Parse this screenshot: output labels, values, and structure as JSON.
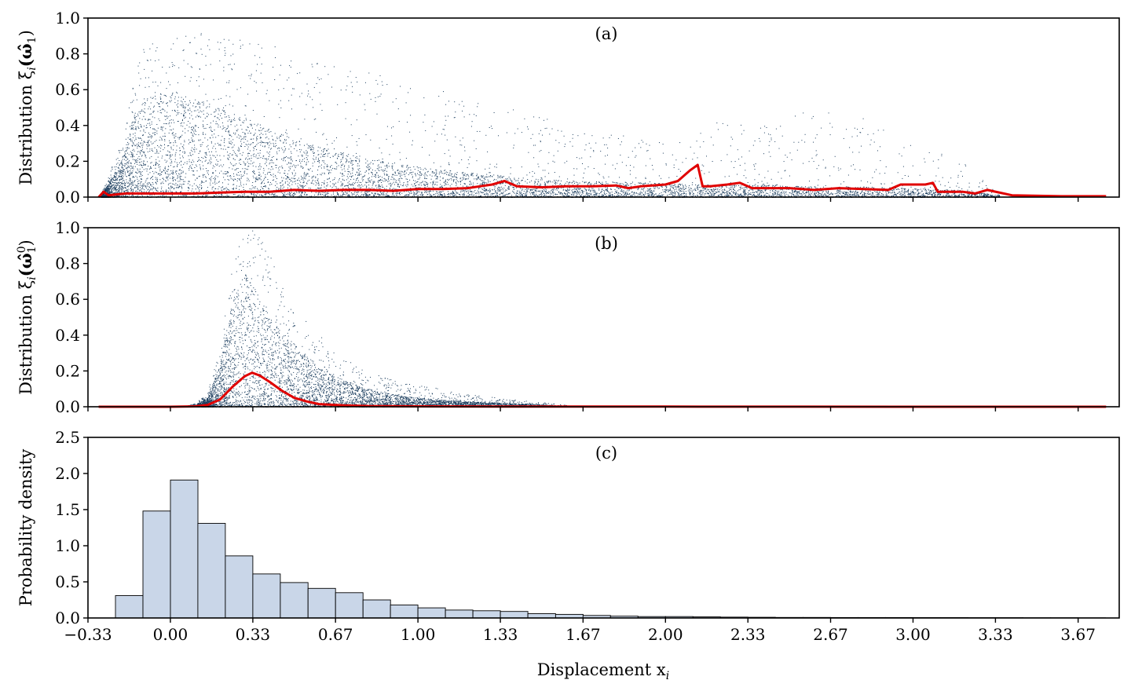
{
  "colors": {
    "scatter": "#1b3d5e",
    "mean_line": "#e00000",
    "bar_fill": "#c9d6e8",
    "bar_edge": "#000000"
  },
  "xlabel": "Displacement x",
  "xlabel_sub": "i",
  "x_ticks": [
    -0.333,
    0.0,
    0.333,
    0.667,
    1.0,
    1.333,
    1.667,
    2.0,
    2.333,
    2.667,
    3.0,
    3.333,
    3.667
  ],
  "x_tick_labels": [
    "−0.33",
    "0.00",
    "0.33",
    "0.67",
    "1.00",
    "1.33",
    "1.67",
    "2.00",
    "2.33",
    "2.67",
    "3.00",
    "3.33",
    "3.67"
  ],
  "chart_data": [
    {
      "type": "scatter",
      "panel_tag": "(a)",
      "ylabel_main": "Distribution ξ",
      "ylabel_sub": "i",
      "ylabel_arg": "(ω̂",
      "ylabel_arg_sub": "1",
      "ylabel_arg_sup": "",
      "ylabel_close": ")",
      "xlim": [
        -0.333,
        3.833
      ],
      "ylim": [
        0,
        1.0
      ],
      "y_ticks": [
        0.0,
        0.2,
        0.4,
        0.6,
        0.8,
        1.0
      ],
      "y_tick_labels": [
        "0.0",
        "0.2",
        "0.4",
        "0.6",
        "0.8",
        "1.0"
      ],
      "scatter_envelope": {
        "x": [
          -0.28,
          -0.2,
          -0.15,
          -0.1,
          0.0,
          0.1,
          0.2,
          0.3,
          0.45,
          0.6,
          0.8,
          1.0,
          1.2,
          1.35,
          1.5,
          1.7,
          2.0,
          2.2,
          2.4,
          2.6,
          2.8,
          3.0,
          3.2,
          3.35
        ],
        "upper": [
          0.02,
          0.3,
          0.65,
          0.9,
          0.93,
          0.92,
          0.9,
          0.88,
          0.85,
          0.8,
          0.72,
          0.65,
          0.55,
          0.52,
          0.45,
          0.38,
          0.3,
          0.42,
          0.4,
          0.5,
          0.45,
          0.3,
          0.2,
          0.01
        ],
        "dense_upper": [
          0.01,
          0.2,
          0.45,
          0.55,
          0.6,
          0.55,
          0.5,
          0.45,
          0.35,
          0.28,
          0.22,
          0.17,
          0.14,
          0.12,
          0.1,
          0.09,
          0.08,
          0.07,
          0.07,
          0.06,
          0.06,
          0.05,
          0.04,
          0.01
        ]
      },
      "mean_line": {
        "x": [
          -0.29,
          -0.27,
          -0.25,
          -0.22,
          -0.18,
          -0.1,
          0.0,
          0.1,
          0.2,
          0.3,
          0.4,
          0.5,
          0.6,
          0.7,
          0.8,
          0.9,
          1.0,
          1.1,
          1.2,
          1.25,
          1.3,
          1.35,
          1.4,
          1.5,
          1.6,
          1.7,
          1.8,
          1.85,
          1.9,
          2.0,
          2.05,
          2.1,
          2.13,
          2.15,
          2.18,
          2.25,
          2.3,
          2.35,
          2.4,
          2.5,
          2.6,
          2.7,
          2.8,
          2.9,
          2.95,
          3.0,
          3.05,
          3.08,
          3.1,
          3.2,
          3.25,
          3.3,
          3.4,
          3.6,
          3.78
        ],
        "y": [
          0.0,
          0.03,
          0.01,
          0.015,
          0.02,
          0.02,
          0.02,
          0.02,
          0.025,
          0.03,
          0.03,
          0.04,
          0.035,
          0.04,
          0.04,
          0.035,
          0.045,
          0.045,
          0.05,
          0.06,
          0.07,
          0.09,
          0.06,
          0.055,
          0.06,
          0.06,
          0.065,
          0.05,
          0.06,
          0.07,
          0.09,
          0.15,
          0.18,
          0.06,
          0.06,
          0.07,
          0.08,
          0.05,
          0.05,
          0.05,
          0.04,
          0.05,
          0.045,
          0.04,
          0.07,
          0.07,
          0.07,
          0.08,
          0.03,
          0.03,
          0.02,
          0.04,
          0.01,
          0.005,
          0.005
        ]
      }
    },
    {
      "type": "scatter",
      "panel_tag": "(b)",
      "ylabel_main": "Distribution ξ",
      "ylabel_sub": "i",
      "ylabel_arg": "(ω̂",
      "ylabel_arg_sub": "1",
      "ylabel_arg_sup": "0",
      "ylabel_close": ")",
      "xlim": [
        -0.333,
        3.833
      ],
      "ylim": [
        0,
        1.0
      ],
      "y_ticks": [
        0.0,
        0.2,
        0.4,
        0.6,
        0.8,
        1.0
      ],
      "y_tick_labels": [
        "0.0",
        "0.2",
        "0.4",
        "0.6",
        "0.8",
        "1.0"
      ],
      "scatter_envelope": {
        "x": [
          0.05,
          0.1,
          0.15,
          0.2,
          0.25,
          0.3,
          0.35,
          0.4,
          0.5,
          0.6,
          0.7,
          0.8,
          0.9,
          1.0,
          1.1,
          1.2,
          1.4,
          1.6
        ],
        "upper": [
          0.0,
          0.02,
          0.08,
          0.35,
          0.8,
          1.0,
          1.0,
          0.85,
          0.55,
          0.4,
          0.28,
          0.2,
          0.15,
          0.12,
          0.1,
          0.07,
          0.04,
          0.01
        ],
        "dense_upper": [
          0.0,
          0.01,
          0.05,
          0.25,
          0.6,
          0.75,
          0.65,
          0.5,
          0.35,
          0.22,
          0.15,
          0.1,
          0.07,
          0.05,
          0.04,
          0.03,
          0.02,
          0.005
        ]
      },
      "mean_line": {
        "x": [
          -0.29,
          0.0,
          0.1,
          0.15,
          0.2,
          0.25,
          0.3,
          0.33,
          0.36,
          0.4,
          0.45,
          0.5,
          0.55,
          0.6,
          0.7,
          0.8,
          1.0,
          1.5,
          2.0,
          3.0,
          3.78
        ],
        "y": [
          0.0,
          0.0,
          0.002,
          0.01,
          0.04,
          0.11,
          0.17,
          0.19,
          0.175,
          0.14,
          0.09,
          0.05,
          0.03,
          0.015,
          0.008,
          0.004,
          0.002,
          0.001,
          0.001,
          0.0,
          0.0
        ]
      }
    },
    {
      "type": "bar",
      "panel_tag": "(c)",
      "ylabel_main": "Probability density",
      "ylabel_sub": "",
      "ylabel_arg": "",
      "ylabel_arg_sub": "",
      "ylabel_arg_sup": "",
      "ylabel_close": "",
      "xlim": [
        -0.333,
        3.833
      ],
      "ylim": [
        0,
        2.5
      ],
      "y_ticks": [
        0.0,
        0.5,
        1.0,
        1.5,
        2.0,
        2.5
      ],
      "y_tick_labels": [
        "0.0",
        "0.5",
        "1.0",
        "1.5",
        "2.0",
        "2.5"
      ],
      "bin_edges": [
        -0.222,
        -0.111,
        0.0,
        0.111,
        0.222,
        0.333,
        0.444,
        0.556,
        0.667,
        0.778,
        0.889,
        1.0,
        1.111,
        1.222,
        1.333,
        1.444,
        1.556,
        1.667,
        1.778,
        1.889,
        2.0,
        2.111,
        2.222,
        2.333,
        2.444,
        2.556,
        2.667,
        2.778,
        2.889,
        3.0,
        3.111,
        3.222,
        3.333,
        3.444,
        3.556,
        3.667,
        3.778
      ],
      "values": [
        0.31,
        1.48,
        1.91,
        1.31,
        0.86,
        0.61,
        0.49,
        0.41,
        0.35,
        0.25,
        0.18,
        0.14,
        0.11,
        0.1,
        0.09,
        0.06,
        0.05,
        0.035,
        0.025,
        0.02,
        0.02,
        0.015,
        0.012,
        0.01,
        0.008,
        0.008,
        0.007,
        0.006,
        0.006,
        0.005,
        0.005,
        0.004,
        0.004,
        0.003,
        0.003,
        0.002
      ]
    }
  ]
}
